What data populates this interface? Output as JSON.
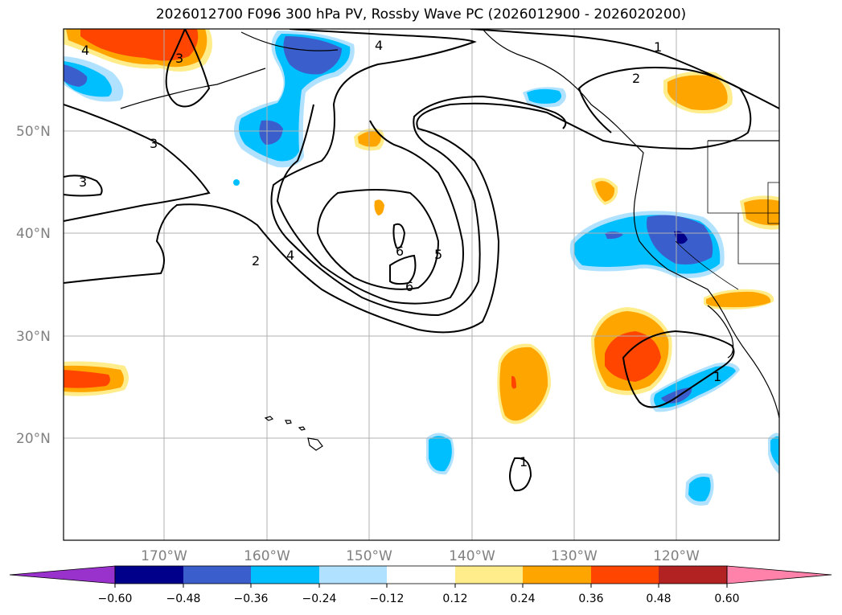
{
  "title": "2026012700 F096 300 hPa PV, Rossby Wave PC (2026012900 - 2026020200)",
  "map": {
    "lat_labels": [
      "50°N",
      "40°N",
      "30°N",
      "20°N"
    ],
    "lon_labels": [
      "170°W",
      "160°W",
      "150°W",
      "140°W",
      "130°W",
      "120°W"
    ],
    "contour_labels": [
      "1",
      "2",
      "3",
      "4",
      "5",
      "6"
    ]
  },
  "colorbar": {
    "ticks": [
      "−0.60",
      "−0.48",
      "−0.36",
      "−0.24",
      "−0.12",
      "0.12",
      "0.24",
      "0.36",
      "0.48",
      "0.60"
    ],
    "colors": [
      "#9932cc",
      "#00008b",
      "#3a5fcd",
      "#00bfff",
      "#b0e2ff",
      "#ffffff",
      "#ffec8b",
      "#ffa500",
      "#ff4500",
      "#b22222",
      "#ff82ab"
    ]
  }
}
